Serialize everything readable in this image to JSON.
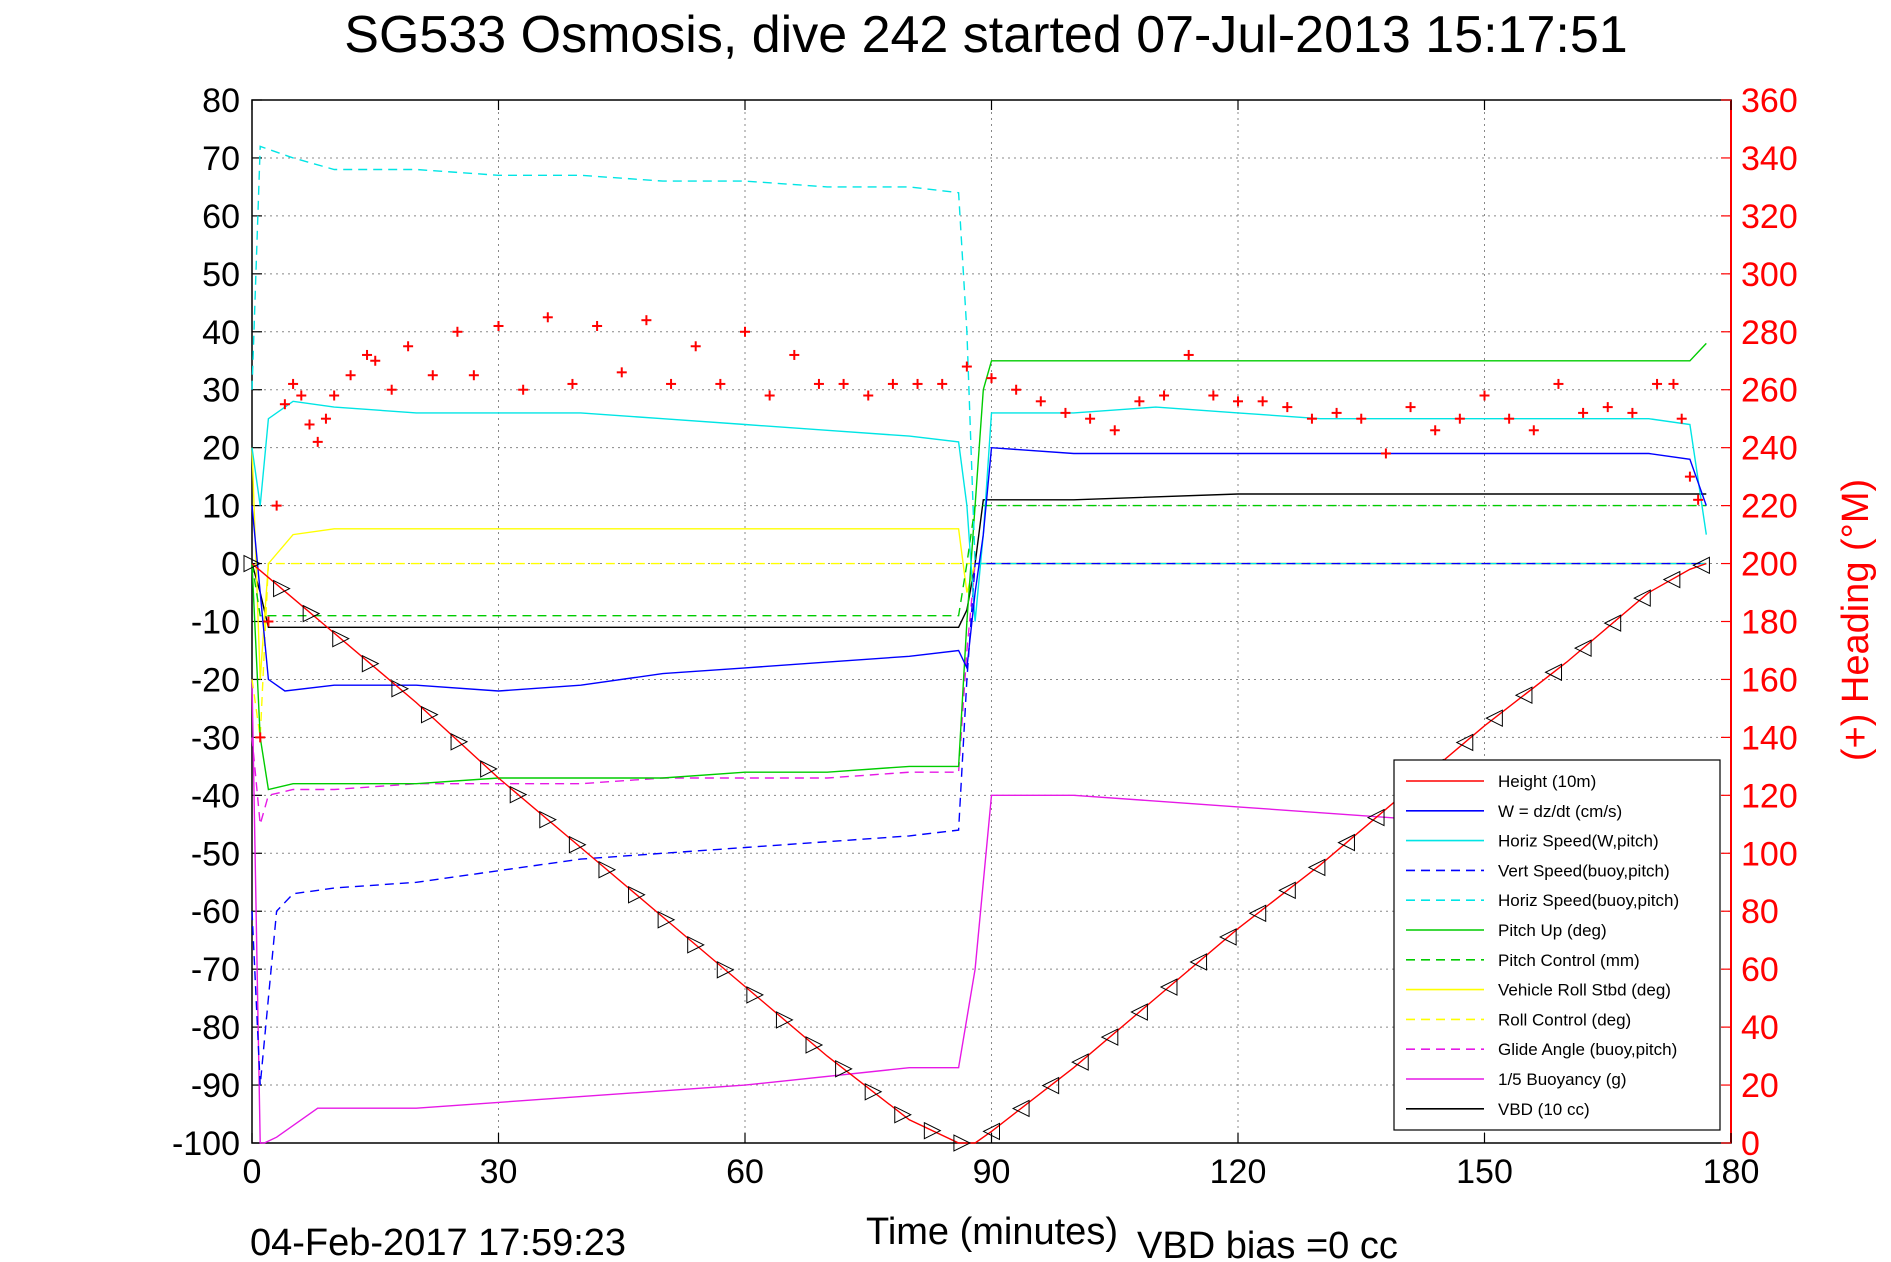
{
  "chart_data": {
    "type": "line",
    "title": "SG533 Osmosis, dive 242 started 07-Jul-2013 15:17:51",
    "xlabel": "Time (minutes)",
    "ylabel_right": "(+) Heading (°M)",
    "xlim": [
      0,
      180
    ],
    "ylim": [
      -100,
      80
    ],
    "ylim_right": [
      0,
      360
    ],
    "xticks": [
      "0",
      "30",
      "60",
      "90",
      "120",
      "150",
      "180"
    ],
    "xtick_values": [
      0,
      30,
      60,
      90,
      120,
      150,
      180
    ],
    "yticks": [
      "80",
      "70",
      "60",
      "50",
      "40",
      "30",
      "20",
      "10",
      "0",
      "-10",
      "-20",
      "-30",
      "-40",
      "-50",
      "-60",
      "-70",
      "-80",
      "-90",
      "-100"
    ],
    "ytick_values": [
      80,
      70,
      60,
      50,
      40,
      30,
      20,
      10,
      0,
      -10,
      -20,
      -30,
      -40,
      -50,
      -60,
      -70,
      -80,
      -90,
      -100
    ],
    "yticks_right": [
      "360",
      "340",
      "320",
      "300",
      "280",
      "260",
      "240",
      "220",
      "200",
      "180",
      "160",
      "140",
      "120",
      "100",
      "80",
      "60",
      "40",
      "20",
      "0"
    ],
    "ytick_right_values": [
      360,
      340,
      320,
      300,
      280,
      260,
      240,
      220,
      200,
      180,
      160,
      140,
      120,
      100,
      80,
      60,
      40,
      20,
      0
    ],
    "grid": true,
    "legend_position": "bottom-right",
    "series": [
      {
        "name": "Height (10m)",
        "color": "#ff0000",
        "style": "solid",
        "marker": "triangles",
        "x": [
          0,
          5,
          10,
          20,
          30,
          40,
          50,
          60,
          70,
          80,
          86,
          88,
          90,
          100,
          110,
          120,
          130,
          140,
          150,
          160,
          170,
          175,
          177
        ],
        "y": [
          0,
          -6,
          -12,
          -24,
          -37,
          -49,
          -61,
          -73,
          -85,
          -96,
          -100,
          -100,
          -98,
          -87,
          -75,
          -63,
          -52,
          -40,
          -28,
          -17,
          -5,
          -1,
          0
        ]
      },
      {
        "name": "W = dz/dt (cm/s)",
        "color": "#0000ff",
        "style": "solid",
        "x": [
          0,
          1,
          2,
          4,
          10,
          20,
          30,
          40,
          50,
          60,
          70,
          80,
          86,
          87,
          88,
          89,
          90,
          100,
          110,
          120,
          130,
          140,
          150,
          160,
          170,
          175,
          177
        ],
        "y": [
          10,
          -5,
          -20,
          -22,
          -21,
          -21,
          -22,
          -21,
          -19,
          -18,
          -17,
          -16,
          -15,
          -18,
          -5,
          5,
          20,
          19,
          19,
          19,
          19,
          19,
          19,
          19,
          19,
          18,
          10
        ]
      },
      {
        "name": "Horiz Speed(W,pitch)",
        "color": "#00e5e5",
        "style": "solid",
        "x": [
          0,
          1,
          2,
          5,
          10,
          20,
          30,
          40,
          50,
          60,
          70,
          80,
          86,
          87,
          88,
          89,
          90,
          100,
          110,
          120,
          130,
          140,
          150,
          160,
          170,
          175,
          177
        ],
        "y": [
          20,
          10,
          25,
          28,
          27,
          26,
          26,
          26,
          25,
          24,
          23,
          22,
          21,
          10,
          -10,
          5,
          26,
          26,
          27,
          26,
          25,
          25,
          25,
          25,
          25,
          24,
          5
        ]
      },
      {
        "name": "Vert Speed(buoy,pitch)",
        "color": "#0000ff",
        "style": "dashed",
        "x": [
          0,
          1,
          2,
          3,
          5,
          10,
          20,
          30,
          40,
          50,
          60,
          70,
          80,
          86,
          87,
          88,
          90,
          177
        ],
        "y": [
          -60,
          -90,
          -75,
          -60,
          -57,
          -56,
          -55,
          -53,
          -51,
          -50,
          -49,
          -48,
          -47,
          -46,
          -20,
          0,
          0,
          0
        ]
      },
      {
        "name": "Horiz Speed(buoy,pitch)",
        "color": "#00e5e5",
        "style": "dashed",
        "x": [
          0,
          1,
          5,
          10,
          20,
          30,
          40,
          50,
          60,
          70,
          80,
          86,
          87,
          88,
          90,
          177
        ],
        "y": [
          30,
          72,
          70,
          68,
          68,
          67,
          67,
          66,
          66,
          65,
          65,
          64,
          40,
          0,
          0,
          0
        ]
      },
      {
        "name": "Pitch Up (deg)",
        "color": "#00cc00",
        "style": "solid",
        "x": [
          0,
          1,
          2,
          5,
          10,
          20,
          30,
          40,
          50,
          60,
          70,
          80,
          86,
          87,
          88,
          89,
          90,
          100,
          110,
          120,
          130,
          140,
          150,
          160,
          170,
          175,
          177
        ],
        "y": [
          0,
          -30,
          -39,
          -38,
          -38,
          -38,
          -37,
          -37,
          -37,
          -36,
          -36,
          -35,
          -35,
          -10,
          10,
          30,
          35,
          35,
          35,
          35,
          35,
          35,
          35,
          35,
          35,
          35,
          38
        ]
      },
      {
        "name": "Pitch Control (mm)",
        "color": "#00cc00",
        "style": "dashed",
        "x": [
          0,
          1,
          5,
          10,
          86,
          87,
          88,
          90,
          177
        ],
        "y": [
          0,
          -9,
          -9,
          -9,
          -9,
          0,
          10,
          10,
          10
        ]
      },
      {
        "name": "Vehicle Roll Stbd (deg)",
        "color": "#ffff00",
        "style": "solid",
        "x": [
          0,
          1,
          2,
          5,
          10,
          20,
          30,
          40,
          50,
          60,
          70,
          80,
          86,
          87,
          88,
          90,
          100,
          110,
          120,
          130,
          140,
          150,
          160,
          170,
          175,
          177
        ],
        "y": [
          20,
          -20,
          0,
          5,
          6,
          6,
          6,
          6,
          6,
          6,
          6,
          6,
          6,
          -5,
          0,
          0,
          0,
          0,
          0,
          0,
          0,
          0,
          0,
          0,
          0,
          0
        ]
      },
      {
        "name": "Roll Control (deg)",
        "color": "#ffff00",
        "style": "dashed",
        "x": [
          0,
          1,
          2,
          5,
          10,
          86,
          88,
          90,
          177
        ],
        "y": [
          -20,
          -30,
          0,
          0,
          0,
          0,
          0,
          0,
          0
        ]
      },
      {
        "name": "Glide Angle (buoy,pitch)",
        "color": "#e619e6",
        "style": "dashed",
        "x": [
          0,
          1,
          2,
          5,
          10,
          20,
          30,
          40,
          50,
          60,
          70,
          80,
          86,
          87,
          88,
          90,
          177
        ],
        "y": [
          -30,
          -45,
          -40,
          -39,
          -39,
          -38,
          -38,
          -38,
          -37,
          -37,
          -37,
          -36,
          -36,
          -15,
          0,
          0,
          0
        ]
      },
      {
        "name": "1/5 Buoyancy (g)",
        "color": "#e619e6",
        "style": "solid",
        "x": [
          0,
          1,
          1.5,
          3,
          8,
          20,
          40,
          60,
          80,
          86,
          88,
          90,
          100,
          120,
          140,
          150
        ],
        "y": [
          -20,
          -100,
          -100,
          -99,
          -94,
          -94,
          -92,
          -90,
          -87,
          -87,
          -70,
          -40,
          -40,
          -42,
          -44,
          -45
        ]
      },
      {
        "name": "VBD (10 cc)",
        "color": "#000000",
        "style": "solid",
        "x": [
          0,
          1,
          2,
          86,
          87,
          88,
          89,
          90,
          100,
          120,
          140,
          160,
          177
        ],
        "y": [
          0,
          -5,
          -11,
          -11,
          -8,
          0,
          11,
          11,
          11,
          12,
          12,
          12,
          12
        ]
      }
    ],
    "heading_series": {
      "name": "Heading (+)",
      "color": "#ff0000",
      "marker": "+",
      "x": [
        1,
        2,
        3,
        4,
        5,
        6,
        7,
        8,
        9,
        10,
        12,
        14,
        15,
        17,
        19,
        22,
        25,
        27,
        30,
        33,
        36,
        39,
        42,
        45,
        48,
        51,
        54,
        57,
        60,
        63,
        66,
        69,
        72,
        75,
        78,
        81,
        84,
        87,
        90,
        93,
        96,
        99,
        102,
        105,
        108,
        111,
        114,
        117,
        120,
        123,
        126,
        129,
        132,
        135,
        138,
        141,
        144,
        147,
        150,
        153,
        156,
        159,
        162,
        165,
        168,
        171,
        173,
        174,
        175,
        176
      ],
      "y": [
        140,
        180,
        220,
        255,
        262,
        258,
        248,
        242,
        250,
        258,
        265,
        272,
        270,
        260,
        275,
        265,
        280,
        265,
        282,
        260,
        285,
        262,
        282,
        266,
        284,
        262,
        275,
        262,
        280,
        258,
        272,
        262,
        262,
        258,
        262,
        262,
        262,
        268,
        264,
        260,
        256,
        252,
        250,
        246,
        256,
        258,
        272,
        258,
        256,
        256,
        254,
        250,
        252,
        250,
        238,
        254,
        246,
        250,
        258,
        250,
        246,
        262,
        252,
        254,
        252,
        262,
        262,
        250,
        230,
        222
      ]
    },
    "footer_timestamp": "04-Feb-2017 17:59:23",
    "footer_note": "VBD bias =0 cc"
  }
}
